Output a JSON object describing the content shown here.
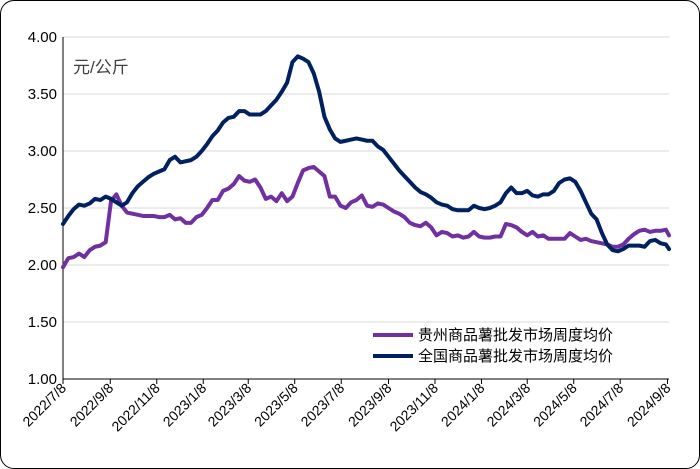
{
  "chart_data": {
    "type": "line",
    "unit_label": "元/公斤",
    "ylim": [
      1.0,
      4.0
    ],
    "yticks": [
      "4.00",
      "3.50",
      "3.00",
      "2.50",
      "2.00",
      "1.50",
      "1.00"
    ],
    "ytick_values": [
      4.0,
      3.5,
      3.0,
      2.5,
      2.0,
      1.5,
      1.0
    ],
    "xlim": [
      "2022-07-08",
      "2024-09-10"
    ],
    "xticks": [
      {
        "label": "2022/7/8",
        "date": "2022-07-08"
      },
      {
        "label": "2022/9/8",
        "date": "2022-09-08"
      },
      {
        "label": "2022/11/8",
        "date": "2022-11-08"
      },
      {
        "label": "2023/1/8",
        "date": "2023-01-08"
      },
      {
        "label": "2023/3/8",
        "date": "2023-03-08"
      },
      {
        "label": "2023/5/8",
        "date": "2023-05-08"
      },
      {
        "label": "2023/7/8",
        "date": "2023-07-08"
      },
      {
        "label": "2023/9/8",
        "date": "2023-09-08"
      },
      {
        "label": "2023/11/8",
        "date": "2023-11-08"
      },
      {
        "label": "2024/1/8",
        "date": "2024-01-08"
      },
      {
        "label": "2024/3/8",
        "date": "2024-03-08"
      },
      {
        "label": "2024/5/8",
        "date": "2024-05-08"
      },
      {
        "label": "2024/7/8",
        "date": "2024-07-08"
      },
      {
        "label": "2024/9/8",
        "date": "2024-09-08"
      }
    ],
    "grid": "horizontal",
    "legend_position": "bottom-right",
    "series": [
      {
        "name": "贵州商品薯批发市场周度均价",
        "color": "#7030a0",
        "points": [
          [
            "2022-07-08",
            1.98
          ],
          [
            "2022-07-15",
            2.06
          ],
          [
            "2022-07-22",
            2.07
          ],
          [
            "2022-07-29",
            2.1
          ],
          [
            "2022-08-05",
            2.07
          ],
          [
            "2022-08-12",
            2.13
          ],
          [
            "2022-08-19",
            2.16
          ],
          [
            "2022-08-26",
            2.17
          ],
          [
            "2022-09-02",
            2.2
          ],
          [
            "2022-09-09",
            2.56
          ],
          [
            "2022-09-16",
            2.62
          ],
          [
            "2022-09-23",
            2.52
          ],
          [
            "2022-09-30",
            2.46
          ],
          [
            "2022-10-07",
            2.45
          ],
          [
            "2022-10-14",
            2.44
          ],
          [
            "2022-10-21",
            2.43
          ],
          [
            "2022-10-28",
            2.43
          ],
          [
            "2022-11-04",
            2.43
          ],
          [
            "2022-11-11",
            2.42
          ],
          [
            "2022-11-18",
            2.42
          ],
          [
            "2022-11-25",
            2.44
          ],
          [
            "2022-12-02",
            2.4
          ],
          [
            "2022-12-09",
            2.41
          ],
          [
            "2022-12-16",
            2.37
          ],
          [
            "2022-12-23",
            2.37
          ],
          [
            "2022-12-30",
            2.42
          ],
          [
            "2023-01-06",
            2.44
          ],
          [
            "2023-01-13",
            2.5
          ],
          [
            "2023-01-20",
            2.57
          ],
          [
            "2023-01-27",
            2.57
          ],
          [
            "2023-02-03",
            2.65
          ],
          [
            "2023-02-10",
            2.67
          ],
          [
            "2023-02-17",
            2.71
          ],
          [
            "2023-02-24",
            2.78
          ],
          [
            "2023-03-03",
            2.74
          ],
          [
            "2023-03-10",
            2.73
          ],
          [
            "2023-03-17",
            2.75
          ],
          [
            "2023-03-24",
            2.68
          ],
          [
            "2023-03-31",
            2.58
          ],
          [
            "2023-04-07",
            2.6
          ],
          [
            "2023-04-14",
            2.56
          ],
          [
            "2023-04-21",
            2.63
          ],
          [
            "2023-04-28",
            2.56
          ],
          [
            "2023-05-05",
            2.6
          ],
          [
            "2023-05-12",
            2.72
          ],
          [
            "2023-05-19",
            2.83
          ],
          [
            "2023-05-26",
            2.85
          ],
          [
            "2023-06-02",
            2.86
          ],
          [
            "2023-06-09",
            2.82
          ],
          [
            "2023-06-16",
            2.78
          ],
          [
            "2023-06-23",
            2.6
          ],
          [
            "2023-06-30",
            2.6
          ],
          [
            "2023-07-07",
            2.52
          ],
          [
            "2023-07-14",
            2.5
          ],
          [
            "2023-07-21",
            2.55
          ],
          [
            "2023-07-28",
            2.57
          ],
          [
            "2023-08-04",
            2.61
          ],
          [
            "2023-08-11",
            2.52
          ],
          [
            "2023-08-18",
            2.51
          ],
          [
            "2023-08-25",
            2.54
          ],
          [
            "2023-09-01",
            2.53
          ],
          [
            "2023-09-08",
            2.5
          ],
          [
            "2023-09-15",
            2.47
          ],
          [
            "2023-09-22",
            2.45
          ],
          [
            "2023-09-29",
            2.42
          ],
          [
            "2023-10-06",
            2.37
          ],
          [
            "2023-10-13",
            2.35
          ],
          [
            "2023-10-20",
            2.34
          ],
          [
            "2023-10-27",
            2.37
          ],
          [
            "2023-11-03",
            2.33
          ],
          [
            "2023-11-10",
            2.26
          ],
          [
            "2023-11-17",
            2.29
          ],
          [
            "2023-11-24",
            2.28
          ],
          [
            "2023-12-01",
            2.25
          ],
          [
            "2023-12-08",
            2.26
          ],
          [
            "2023-12-15",
            2.24
          ],
          [
            "2023-12-22",
            2.25
          ],
          [
            "2023-12-29",
            2.29
          ],
          [
            "2024-01-05",
            2.25
          ],
          [
            "2024-01-12",
            2.24
          ],
          [
            "2024-01-19",
            2.24
          ],
          [
            "2024-01-26",
            2.25
          ],
          [
            "2024-02-02",
            2.25
          ],
          [
            "2024-02-09",
            2.36
          ],
          [
            "2024-02-16",
            2.35
          ],
          [
            "2024-02-23",
            2.33
          ],
          [
            "2024-03-01",
            2.29
          ],
          [
            "2024-03-08",
            2.26
          ],
          [
            "2024-03-15",
            2.29
          ],
          [
            "2024-03-22",
            2.25
          ],
          [
            "2024-03-29",
            2.26
          ],
          [
            "2024-04-05",
            2.23
          ],
          [
            "2024-04-12",
            2.23
          ],
          [
            "2024-04-19",
            2.23
          ],
          [
            "2024-04-26",
            2.23
          ],
          [
            "2024-05-03",
            2.28
          ],
          [
            "2024-05-10",
            2.25
          ],
          [
            "2024-05-17",
            2.22
          ],
          [
            "2024-05-24",
            2.23
          ],
          [
            "2024-05-31",
            2.21
          ],
          [
            "2024-06-07",
            2.2
          ],
          [
            "2024-06-14",
            2.19
          ],
          [
            "2024-06-21",
            2.18
          ],
          [
            "2024-06-28",
            2.16
          ],
          [
            "2024-07-05",
            2.16
          ],
          [
            "2024-07-12",
            2.18
          ],
          [
            "2024-07-19",
            2.23
          ],
          [
            "2024-07-26",
            2.27
          ],
          [
            "2024-08-02",
            2.3
          ],
          [
            "2024-08-09",
            2.31
          ],
          [
            "2024-08-16",
            2.29
          ],
          [
            "2024-08-23",
            2.3
          ],
          [
            "2024-08-30",
            2.3
          ],
          [
            "2024-09-06",
            2.31
          ],
          [
            "2024-09-10",
            2.26
          ]
        ]
      },
      {
        "name": "全国商品薯批发市场周度均价",
        "color": "#002060",
        "points": [
          [
            "2022-07-08",
            2.36
          ],
          [
            "2022-07-15",
            2.43
          ],
          [
            "2022-07-22",
            2.49
          ],
          [
            "2022-07-29",
            2.53
          ],
          [
            "2022-08-05",
            2.52
          ],
          [
            "2022-08-12",
            2.54
          ],
          [
            "2022-08-19",
            2.58
          ],
          [
            "2022-08-26",
            2.57
          ],
          [
            "2022-09-02",
            2.6
          ],
          [
            "2022-09-09",
            2.58
          ],
          [
            "2022-09-16",
            2.55
          ],
          [
            "2022-09-23",
            2.52
          ],
          [
            "2022-09-30",
            2.55
          ],
          [
            "2022-10-07",
            2.63
          ],
          [
            "2022-10-14",
            2.69
          ],
          [
            "2022-10-21",
            2.73
          ],
          [
            "2022-10-28",
            2.77
          ],
          [
            "2022-11-04",
            2.8
          ],
          [
            "2022-11-11",
            2.82
          ],
          [
            "2022-11-18",
            2.84
          ],
          [
            "2022-11-25",
            2.92
          ],
          [
            "2022-12-02",
            2.95
          ],
          [
            "2022-12-09",
            2.9
          ],
          [
            "2022-12-16",
            2.91
          ],
          [
            "2022-12-23",
            2.92
          ],
          [
            "2022-12-30",
            2.95
          ],
          [
            "2023-01-06",
            3.0
          ],
          [
            "2023-01-13",
            3.06
          ],
          [
            "2023-01-20",
            3.13
          ],
          [
            "2023-01-27",
            3.18
          ],
          [
            "2023-02-03",
            3.25
          ],
          [
            "2023-02-10",
            3.29
          ],
          [
            "2023-02-17",
            3.3
          ],
          [
            "2023-02-24",
            3.35
          ],
          [
            "2023-03-03",
            3.35
          ],
          [
            "2023-03-10",
            3.32
          ],
          [
            "2023-03-17",
            3.32
          ],
          [
            "2023-03-24",
            3.32
          ],
          [
            "2023-03-31",
            3.35
          ],
          [
            "2023-04-07",
            3.4
          ],
          [
            "2023-04-14",
            3.45
          ],
          [
            "2023-04-21",
            3.52
          ],
          [
            "2023-04-28",
            3.6
          ],
          [
            "2023-05-05",
            3.78
          ],
          [
            "2023-05-12",
            3.83
          ],
          [
            "2023-05-19",
            3.81
          ],
          [
            "2023-05-26",
            3.78
          ],
          [
            "2023-06-02",
            3.68
          ],
          [
            "2023-06-09",
            3.52
          ],
          [
            "2023-06-16",
            3.3
          ],
          [
            "2023-06-23",
            3.19
          ],
          [
            "2023-06-30",
            3.11
          ],
          [
            "2023-07-07",
            3.08
          ],
          [
            "2023-07-14",
            3.09
          ],
          [
            "2023-07-21",
            3.1
          ],
          [
            "2023-07-28",
            3.11
          ],
          [
            "2023-08-04",
            3.1
          ],
          [
            "2023-08-11",
            3.09
          ],
          [
            "2023-08-18",
            3.09
          ],
          [
            "2023-08-25",
            3.04
          ],
          [
            "2023-09-01",
            3.01
          ],
          [
            "2023-09-08",
            2.95
          ],
          [
            "2023-09-15",
            2.89
          ],
          [
            "2023-09-22",
            2.83
          ],
          [
            "2023-09-29",
            2.78
          ],
          [
            "2023-10-06",
            2.73
          ],
          [
            "2023-10-13",
            2.68
          ],
          [
            "2023-10-20",
            2.64
          ],
          [
            "2023-10-27",
            2.62
          ],
          [
            "2023-11-03",
            2.59
          ],
          [
            "2023-11-10",
            2.55
          ],
          [
            "2023-11-17",
            2.53
          ],
          [
            "2023-11-24",
            2.52
          ],
          [
            "2023-12-01",
            2.49
          ],
          [
            "2023-12-08",
            2.48
          ],
          [
            "2023-12-15",
            2.48
          ],
          [
            "2023-12-22",
            2.48
          ],
          [
            "2023-12-29",
            2.52
          ],
          [
            "2024-01-05",
            2.5
          ],
          [
            "2024-01-12",
            2.49
          ],
          [
            "2024-01-19",
            2.5
          ],
          [
            "2024-01-26",
            2.52
          ],
          [
            "2024-02-02",
            2.55
          ],
          [
            "2024-02-09",
            2.63
          ],
          [
            "2024-02-16",
            2.68
          ],
          [
            "2024-02-23",
            2.63
          ],
          [
            "2024-03-01",
            2.63
          ],
          [
            "2024-03-08",
            2.65
          ],
          [
            "2024-03-15",
            2.61
          ],
          [
            "2024-03-22",
            2.6
          ],
          [
            "2024-03-29",
            2.62
          ],
          [
            "2024-04-05",
            2.62
          ],
          [
            "2024-04-12",
            2.65
          ],
          [
            "2024-04-19",
            2.72
          ],
          [
            "2024-04-26",
            2.75
          ],
          [
            "2024-05-03",
            2.76
          ],
          [
            "2024-05-10",
            2.73
          ],
          [
            "2024-05-17",
            2.65
          ],
          [
            "2024-05-24",
            2.55
          ],
          [
            "2024-05-31",
            2.45
          ],
          [
            "2024-06-07",
            2.4
          ],
          [
            "2024-06-14",
            2.28
          ],
          [
            "2024-06-21",
            2.18
          ],
          [
            "2024-06-28",
            2.13
          ],
          [
            "2024-07-05",
            2.12
          ],
          [
            "2024-07-12",
            2.14
          ],
          [
            "2024-07-19",
            2.17
          ],
          [
            "2024-07-26",
            2.17
          ],
          [
            "2024-08-02",
            2.17
          ],
          [
            "2024-08-09",
            2.16
          ],
          [
            "2024-08-16",
            2.21
          ],
          [
            "2024-08-23",
            2.22
          ],
          [
            "2024-08-30",
            2.19
          ],
          [
            "2024-09-06",
            2.18
          ],
          [
            "2024-09-10",
            2.14
          ]
        ]
      }
    ]
  }
}
